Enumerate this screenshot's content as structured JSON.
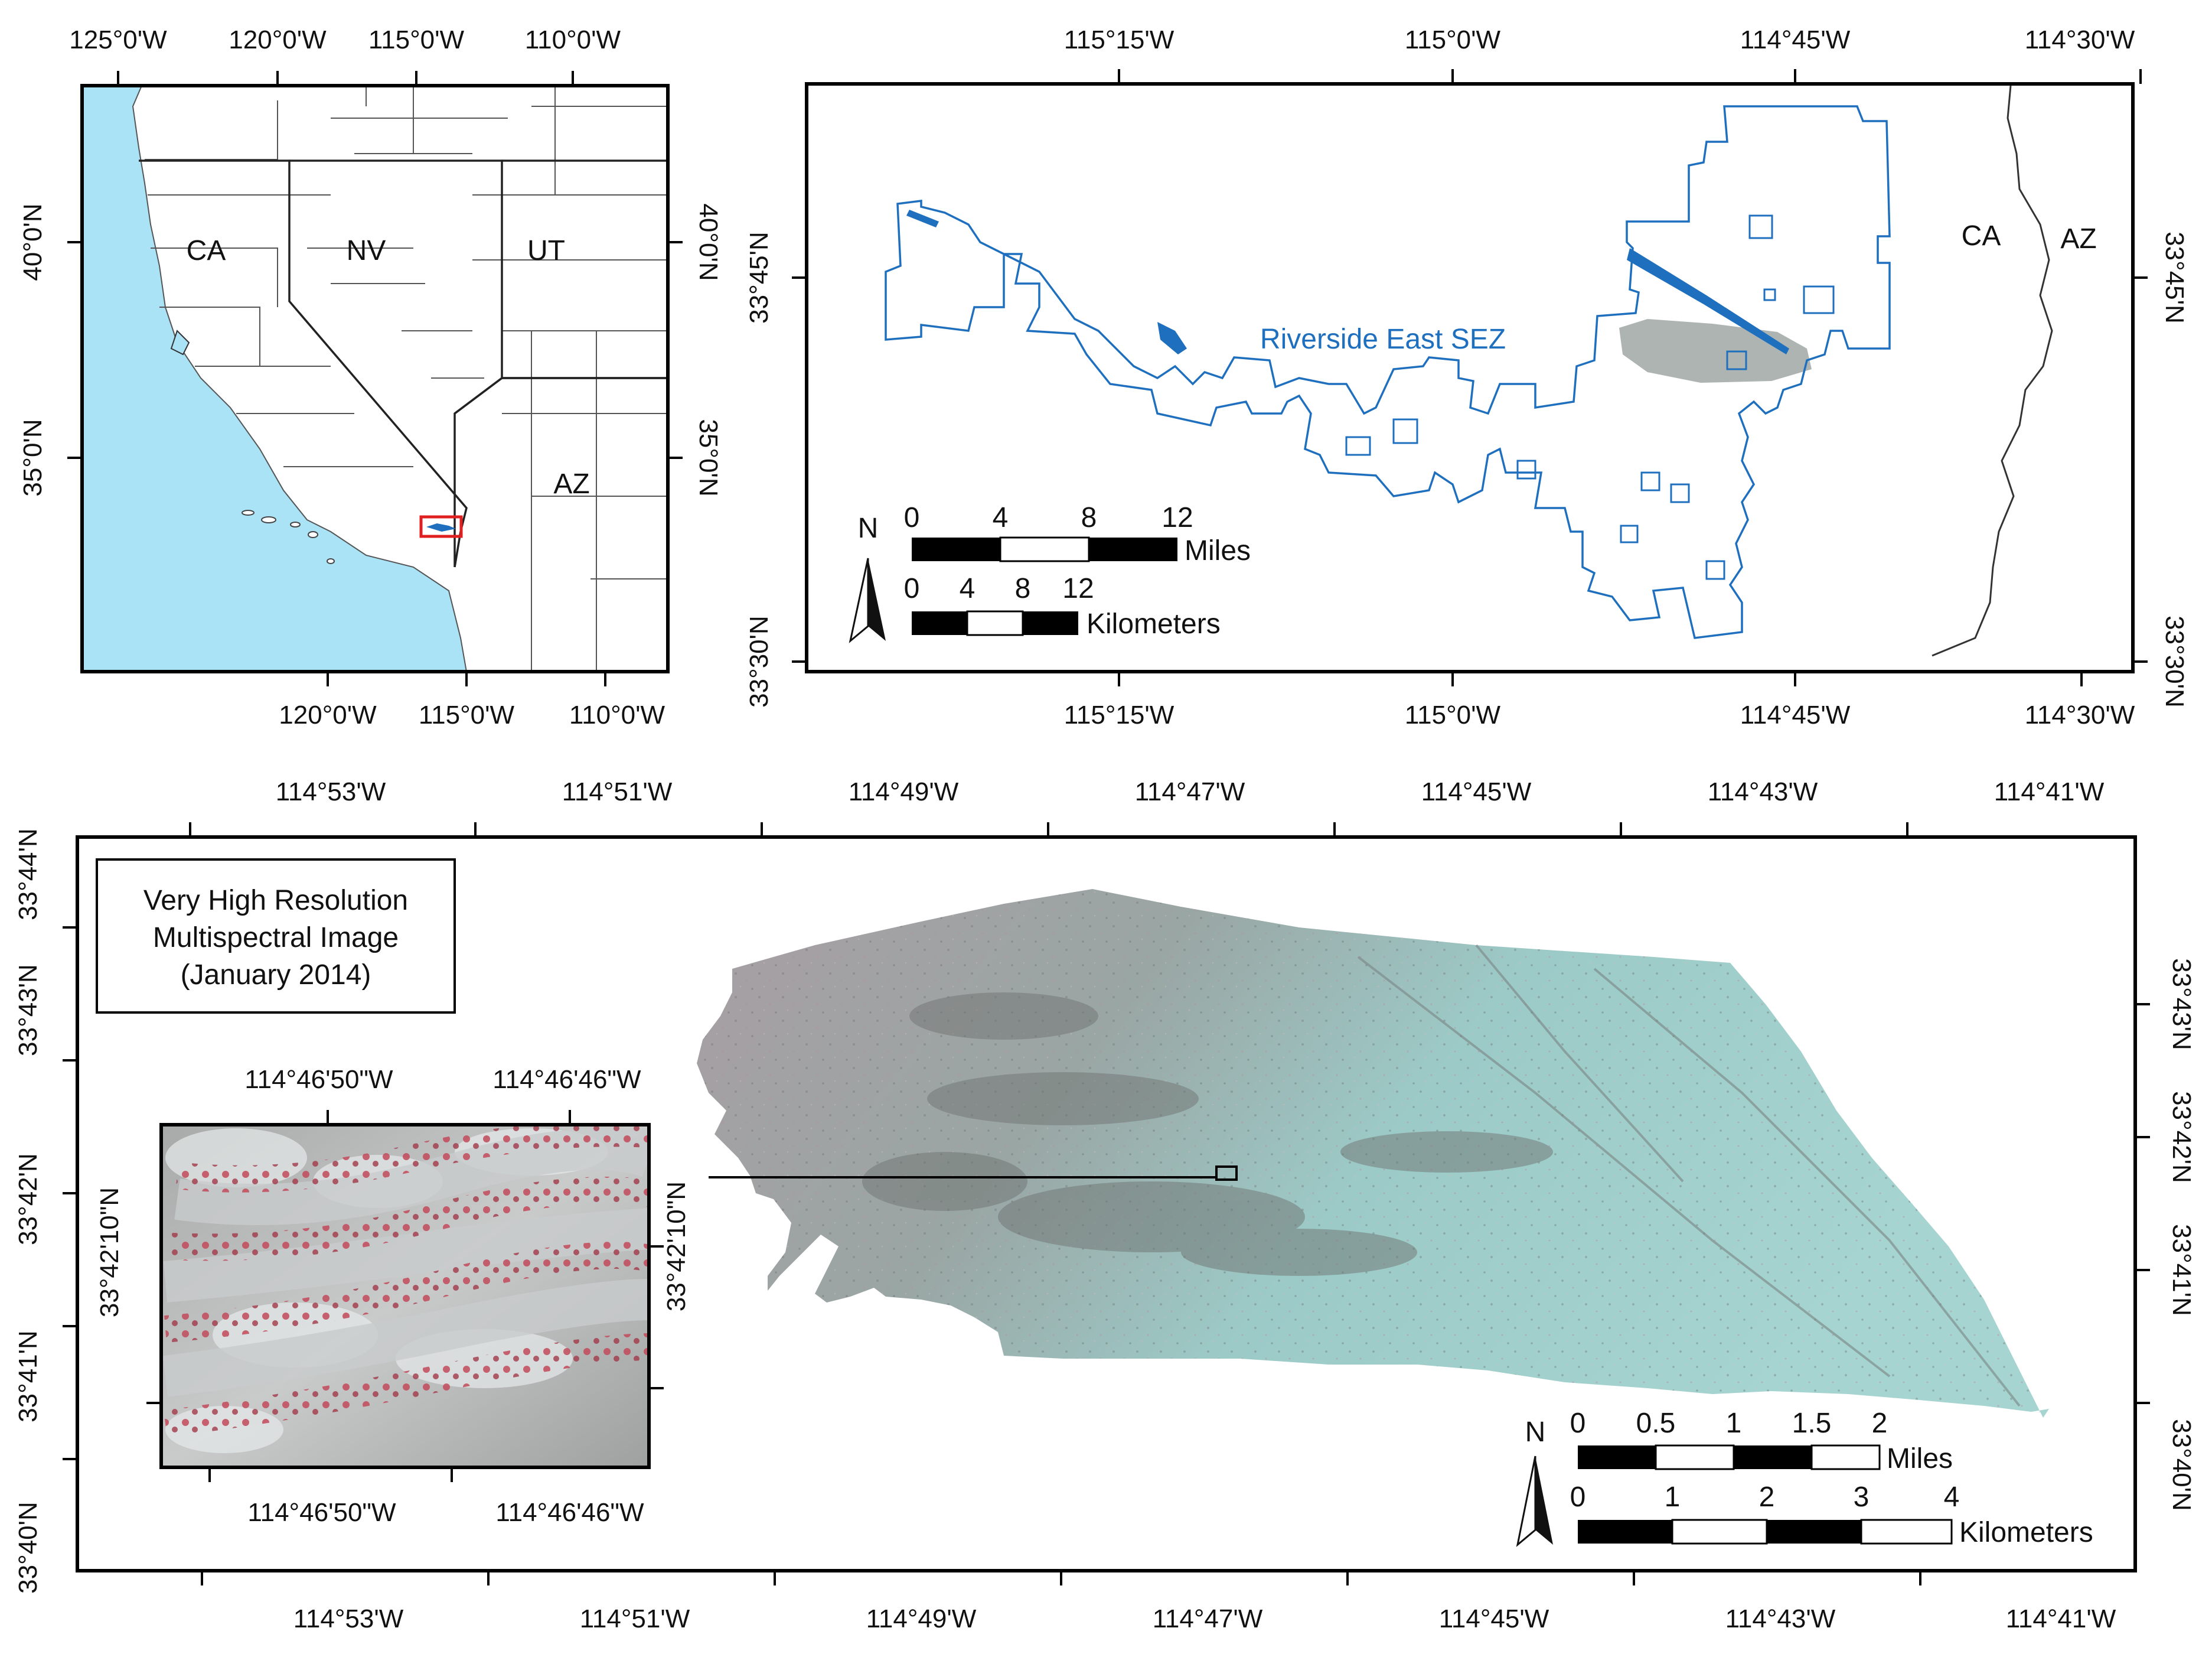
{
  "colors": {
    "ocean": "#a9e3f5",
    "land": "#ffffff",
    "sez_outline": "#1f6fbf",
    "sez_label": "#1f6fbf",
    "locator_box": "#e02020",
    "imagery_cyan": "#9fc9c6",
    "imagery_gray": "#8f918f",
    "imagery_pink": "#c9a9b2"
  },
  "panel_a": {
    "top_ticks": [
      "125°0'W",
      "120°0'W",
      "115°0'W",
      "110°0'W"
    ],
    "bottom_ticks": [
      "120°0'W",
      "115°0'W",
      "110°0'W"
    ],
    "left_ticks": [
      "40°0'N",
      "35°0'N"
    ],
    "right_ticks": [
      "40°0'N",
      "35°0'N"
    ],
    "states": [
      "CA",
      "NV",
      "UT",
      "AZ"
    ]
  },
  "panel_b": {
    "top_ticks": [
      "115°15'W",
      "115°0'W",
      "114°45'W",
      "114°30'W"
    ],
    "bottom_ticks": [
      "115°15'W",
      "115°0'W",
      "114°45'W",
      "114°30'W"
    ],
    "left_ticks": [
      "33°45'N",
      "33°30'N"
    ],
    "right_ticks": [
      "33°45'N",
      "33°30'N"
    ],
    "sez_label": "Riverside East SEZ",
    "states": [
      "CA",
      "AZ"
    ],
    "north": "N",
    "scale_miles": {
      "ticks": [
        "0",
        "4",
        "8",
        "12"
      ],
      "unit": "Miles"
    },
    "scale_km": {
      "ticks": [
        "0",
        "4",
        "8",
        "12"
      ],
      "unit": "Kilometers"
    }
  },
  "panel_c": {
    "top_ticks": [
      "114°53'W",
      "114°51'W",
      "114°49'W",
      "114°47'W",
      "114°45'W",
      "114°43'W",
      "114°41'W"
    ],
    "bottom_ticks": [
      "114°53'W",
      "114°51'W",
      "114°49'W",
      "114°47'W",
      "114°45'W",
      "114°43'W",
      "114°41'W"
    ],
    "left_ticks": [
      "33°44'N",
      "33°43'N",
      "33°42'N",
      "33°41'N",
      "33°40'N"
    ],
    "right_ticks": [
      "33°43'N",
      "33°42'N",
      "33°41'N",
      "33°40'N"
    ],
    "legend_lines": [
      "Very High Resolution",
      "Multispectral Image",
      "(January 2014)"
    ],
    "north": "N",
    "scale_miles": {
      "ticks": [
        "0",
        "0.5",
        "1",
        "1.5",
        "2"
      ],
      "unit": "Miles"
    },
    "scale_km": {
      "ticks": [
        "0",
        "1",
        "2",
        "3",
        "4"
      ],
      "unit": "Kilometers"
    }
  },
  "inset": {
    "top_ticks": [
      "114°46'50\"W",
      "114°46'46\"W"
    ],
    "bottom_ticks": [
      "114°46'50\"W",
      "114°46'46\"W"
    ],
    "left_ticks": [
      "33°42'10\"N"
    ],
    "right_ticks": [
      "33°42'10\"N"
    ]
  }
}
